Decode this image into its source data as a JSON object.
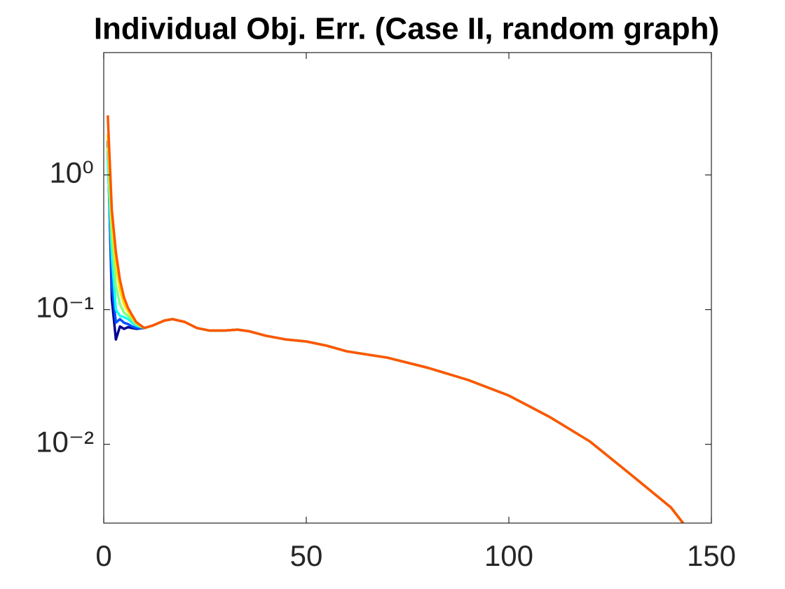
{
  "chart_data": {
    "type": "line",
    "title": "Individual Obj. Err. (Case II, random graph)",
    "yscale": "log",
    "xlim": [
      0,
      150
    ],
    "xticks": [
      0,
      50,
      100,
      150
    ],
    "ylim": [
      0.0026,
      8.1
    ],
    "yticks": [
      {
        "value": 0.01,
        "label": "10⁻²"
      },
      {
        "value": 0.1,
        "label": "10⁻¹"
      },
      {
        "value": 1,
        "label": "10⁰"
      }
    ],
    "x": [
      1,
      2,
      3,
      4,
      5,
      6,
      7,
      8,
      10,
      12,
      15,
      17,
      20,
      23,
      26,
      30,
      33,
      36,
      40,
      45,
      50,
      55,
      60,
      70,
      80,
      90,
      100,
      110,
      120,
      130,
      140,
      143
    ],
    "series": [
      {
        "color": "#00008f",
        "values": [
          1.8,
          0.12,
          0.06,
          0.075,
          0.072,
          0.074,
          0.073,
          0.072,
          0.073,
          0.076,
          0.083,
          0.085,
          0.081,
          0.073,
          0.07,
          0.07,
          0.071,
          0.069,
          0.064,
          0.06,
          0.058,
          0.054,
          0.049,
          0.044,
          0.037,
          0.03,
          0.023,
          0.016,
          0.0105,
          0.006,
          0.0034,
          0.0026
        ]
      },
      {
        "color": "#0050ff",
        "values": [
          1.5,
          0.15,
          0.08,
          0.085,
          0.08,
          0.078,
          0.075,
          0.073,
          0.073,
          0.076,
          0.083,
          0.085,
          0.081,
          0.073,
          0.07,
          0.07,
          0.071,
          0.069,
          0.064,
          0.06,
          0.058,
          0.054,
          0.049,
          0.044,
          0.037,
          0.03,
          0.023,
          0.016,
          0.0105,
          0.006,
          0.0034,
          0.0026
        ]
      },
      {
        "color": "#10ffef",
        "values": [
          1.3,
          0.25,
          0.1,
          0.09,
          0.088,
          0.085,
          0.08,
          0.076,
          0.073,
          0.076,
          0.083,
          0.085,
          0.081,
          0.073,
          0.07,
          0.07,
          0.071,
          0.069,
          0.064,
          0.06,
          0.058,
          0.054,
          0.049,
          0.044,
          0.037,
          0.03,
          0.023,
          0.016,
          0.0105,
          0.006,
          0.0034,
          0.0026
        ]
      },
      {
        "color": "#80ff80",
        "values": [
          1.6,
          0.35,
          0.15,
          0.11,
          0.095,
          0.09,
          0.084,
          0.078,
          0.073,
          0.076,
          0.083,
          0.085,
          0.081,
          0.073,
          0.07,
          0.07,
          0.071,
          0.069,
          0.064,
          0.06,
          0.058,
          0.054,
          0.049,
          0.044,
          0.037,
          0.03,
          0.023,
          0.016,
          0.0105,
          0.006,
          0.0034,
          0.0026
        ]
      },
      {
        "color": "#ffdf00",
        "values": [
          2.0,
          0.45,
          0.22,
          0.14,
          0.11,
          0.097,
          0.088,
          0.08,
          0.073,
          0.076,
          0.083,
          0.085,
          0.081,
          0.073,
          0.07,
          0.07,
          0.071,
          0.069,
          0.064,
          0.06,
          0.058,
          0.054,
          0.049,
          0.044,
          0.037,
          0.03,
          0.023,
          0.016,
          0.0105,
          0.006,
          0.0034,
          0.0026
        ]
      },
      {
        "color": "#ff5500",
        "values": [
          2.77,
          0.55,
          0.267,
          0.166,
          0.123,
          0.103,
          0.091,
          0.081,
          0.073,
          0.076,
          0.083,
          0.085,
          0.081,
          0.073,
          0.07,
          0.07,
          0.071,
          0.069,
          0.064,
          0.06,
          0.058,
          0.054,
          0.049,
          0.044,
          0.037,
          0.03,
          0.023,
          0.016,
          0.0105,
          0.006,
          0.0034,
          0.0026
        ]
      }
    ]
  }
}
